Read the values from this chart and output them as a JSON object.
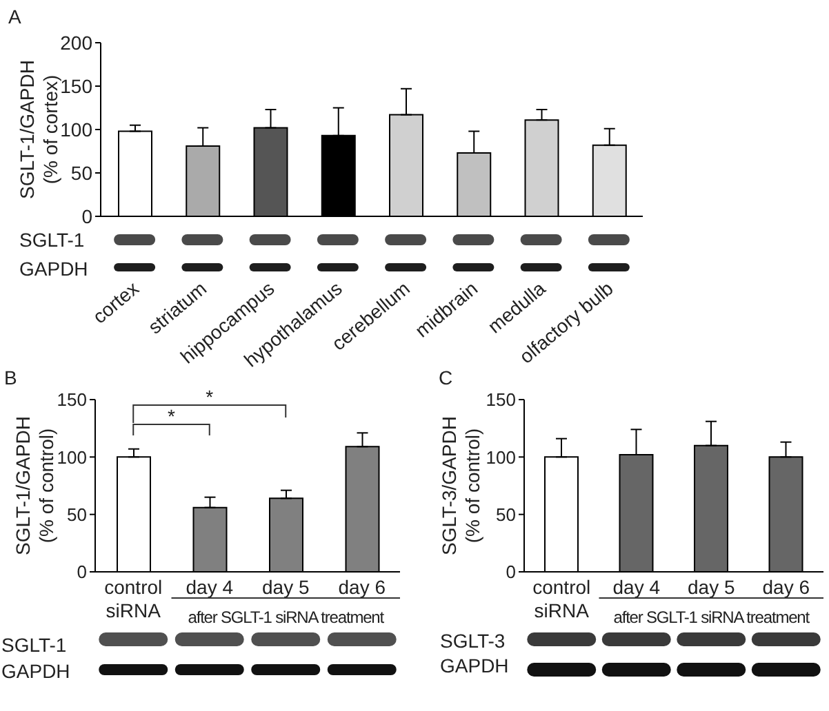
{
  "chart_data": [
    {
      "type": "bar",
      "title": "A",
      "ylabel": "SGLT-1/GAPDH\n(% of cortex)",
      "categories": [
        "cortex",
        "striatum",
        "hippocampus",
        "hypothalamus",
        "cerebellum",
        "midbrain",
        "medulla",
        "olfactory bulb"
      ],
      "values": [
        98,
        81,
        102,
        93,
        117,
        73,
        111,
        82
      ],
      "errors": [
        [
          98,
          105
        ],
        [
          81,
          102
        ],
        [
          102,
          123
        ],
        [
          93,
          125
        ],
        [
          117,
          147
        ],
        [
          73,
          98
        ],
        [
          111,
          123
        ],
        [
          82,
          101
        ]
      ],
      "colors": [
        "#ffffff",
        "#aaaaaa",
        "#555555",
        "#000000",
        "#d0d0d0",
        "#c0c0c0",
        "#d0d0d0",
        "#e0e0e0"
      ],
      "ylim": [
        0,
        200
      ],
      "yticks": [
        0,
        50,
        100,
        150,
        200
      ],
      "annotations": [
        "SGLT-1",
        "GAPDH"
      ]
    },
    {
      "type": "bar",
      "title": "B",
      "ylabel": "SGLT-1/GAPDH\n(% of control)",
      "categories": [
        "control\nsiRNA",
        "day 4",
        "day 5",
        "day 6"
      ],
      "values": [
        100,
        56,
        64,
        109
      ],
      "errors": [
        [
          100,
          107
        ],
        [
          56,
          65
        ],
        [
          64,
          71
        ],
        [
          109,
          121
        ]
      ],
      "colors": [
        "#ffffff",
        "#808080",
        "#808080",
        "#808080"
      ],
      "ylim": [
        0,
        150
      ],
      "yticks": [
        0,
        50,
        100,
        150
      ],
      "annotations": [
        "*",
        "*",
        "after SGLT-1 siRNA treatment",
        "SGLT-1",
        "GAPDH"
      ]
    },
    {
      "type": "bar",
      "title": "C",
      "ylabel": "SGLT-3/GAPDH\n(% of control)",
      "categories": [
        "control\nsiRNA",
        "day 4",
        "day 5",
        "day 6"
      ],
      "values": [
        100,
        102,
        110,
        100
      ],
      "errors": [
        [
          100,
          116
        ],
        [
          102,
          124
        ],
        [
          110,
          131
        ],
        [
          100,
          113
        ]
      ],
      "colors": [
        "#ffffff",
        "#666666",
        "#666666",
        "#666666"
      ],
      "ylim": [
        0,
        150
      ],
      "yticks": [
        0,
        50,
        100,
        150
      ],
      "annotations": [
        "after SGLT-1 siRNA treatment",
        "SGLT-3",
        "GAPDH"
      ]
    }
  ]
}
